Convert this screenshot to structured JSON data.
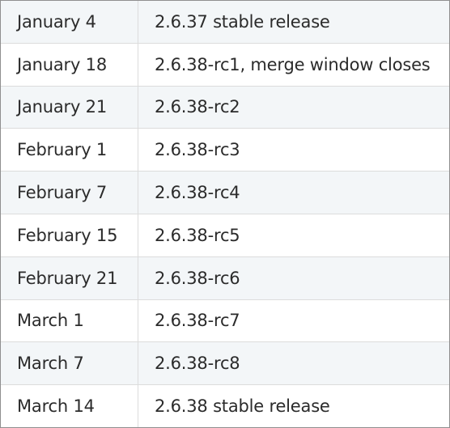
{
  "schedule": {
    "rows": [
      {
        "date": "January 4",
        "event": "2.6.37 stable release"
      },
      {
        "date": "January 18",
        "event": "2.6.38-rc1, merge window closes"
      },
      {
        "date": "January 21",
        "event": "2.6.38-rc2"
      },
      {
        "date": "February 1",
        "event": "2.6.38-rc3"
      },
      {
        "date": "February 7",
        "event": "2.6.38-rc4"
      },
      {
        "date": "February 15",
        "event": "2.6.38-rc5"
      },
      {
        "date": "February 21",
        "event": "2.6.38-rc6"
      },
      {
        "date": "March 1",
        "event": "2.6.38-rc7"
      },
      {
        "date": "March 7",
        "event": "2.6.38-rc8"
      },
      {
        "date": "March 14",
        "event": "2.6.38 stable release"
      }
    ]
  },
  "colors": {
    "stripe": "#f3f6f8",
    "background": "#ffffff",
    "text": "#2b2b2b",
    "border": "#8f8f8f",
    "divider": "#dcdcdc"
  }
}
